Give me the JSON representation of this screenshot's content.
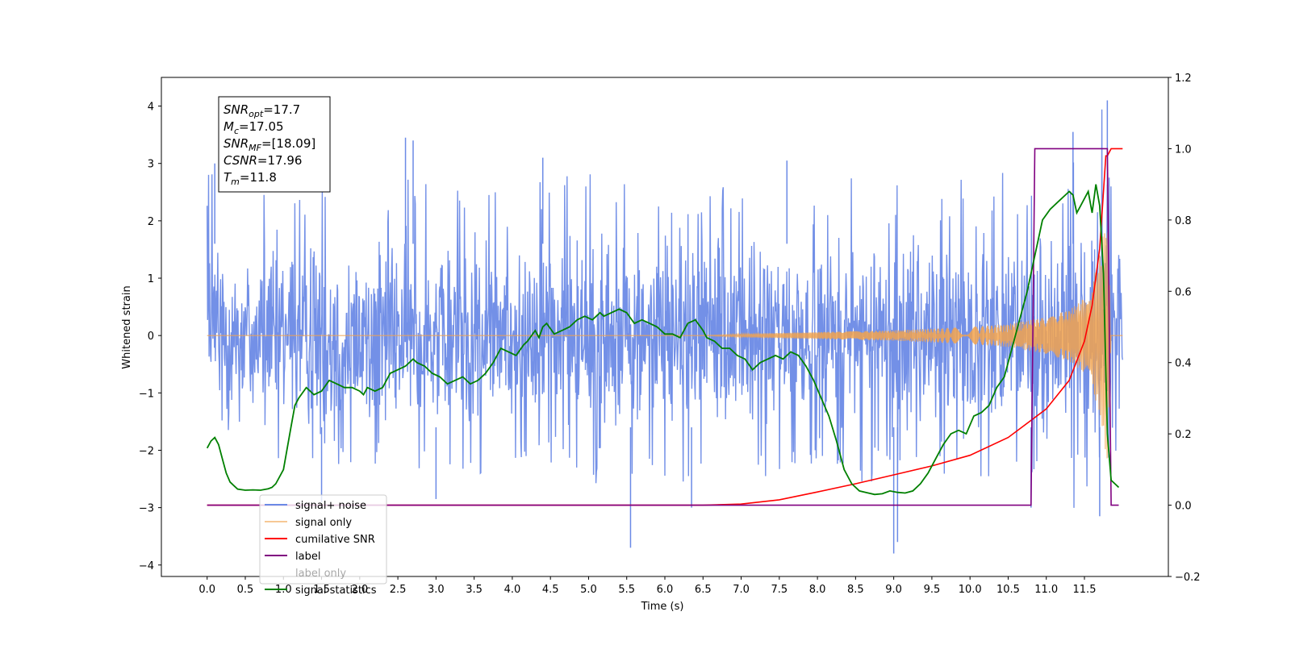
{
  "chart_data": {
    "type": "line",
    "title": "",
    "xlabel": "Time (s)",
    "ylabel": "Whitened strain",
    "xlim": [
      -0.6,
      12.6
    ],
    "ylim": [
      -4.2,
      4.5
    ],
    "y2lim": [
      -0.2,
      1.2
    ],
    "x_ticks": [
      0.0,
      0.5,
      1.0,
      1.5,
      2.0,
      2.5,
      3.0,
      3.5,
      4.0,
      4.5,
      5.0,
      5.5,
      6.0,
      6.5,
      7.0,
      7.5,
      8.0,
      8.5,
      9.0,
      9.5,
      10.0,
      10.5,
      11.0,
      11.5
    ],
    "x_tick_labels": [
      "0.0",
      "0.5",
      "1.0",
      "1.5",
      "2.0",
      "2.5",
      "3.0",
      "3.5",
      "4.0",
      "4.5",
      "5.0",
      "5.5",
      "6.0",
      "6.5",
      "7.0",
      "7.5",
      "8.0",
      "8.5",
      "9.0",
      "9.5",
      "10.0",
      "10.5",
      "11.0",
      "11.5"
    ],
    "y_ticks": [
      4,
      3,
      2,
      1,
      0,
      -1,
      -2,
      -3,
      -4
    ],
    "y_tick_labels": [
      "4",
      "3",
      "2",
      "1",
      "0",
      "−1",
      "−2",
      "−3",
      "−4"
    ],
    "y2_ticks": [
      1.2,
      1.0,
      0.8,
      0.6,
      0.4,
      0.2,
      0.0,
      -0.2
    ],
    "y2_tick_labels": [
      "1.2",
      "1.0",
      "0.8",
      "0.6",
      "0.4",
      "0.2",
      "0.0",
      "−0.2"
    ],
    "grid": false,
    "legend_position": "bottom-left",
    "series": [
      {
        "name": "signal+ noise",
        "axis": "left",
        "color": "#6b8ae6",
        "envelope": {
          "x": [
            0.0,
            1.0,
            2.0,
            3.0,
            4.0,
            5.0,
            6.0,
            7.0,
            8.0,
            9.0,
            10.0,
            11.0,
            11.5,
            12.0
          ],
          "upper": [
            3.0,
            2.6,
            2.8,
            2.7,
            2.7,
            2.9,
            2.7,
            2.7,
            2.8,
            2.6,
            2.7,
            3.0,
            3.2,
            2.6
          ],
          "lower": [
            -2.3,
            -2.4,
            -2.4,
            -2.5,
            -2.4,
            -2.6,
            -2.6,
            -2.5,
            -2.5,
            -2.6,
            -2.6,
            -2.7,
            -2.7,
            -2.2
          ]
        },
        "spikes": [
          {
            "x": 0.1,
            "y": 3.0
          },
          {
            "x": 2.6,
            "y": 3.45
          },
          {
            "x": 2.7,
            "y": 3.4
          },
          {
            "x": 4.4,
            "y": 3.1
          },
          {
            "x": 5.55,
            "y": -3.7
          },
          {
            "x": 6.35,
            "y": -3.0
          },
          {
            "x": 7.6,
            "y": 3.05
          },
          {
            "x": 9.0,
            "y": -3.8
          },
          {
            "x": 9.05,
            "y": -3.6
          },
          {
            "x": 10.8,
            "y": -3.0
          },
          {
            "x": 11.35,
            "y": 3.55
          },
          {
            "x": 11.8,
            "y": 4.1
          },
          {
            "x": 11.7,
            "y": -3.15
          },
          {
            "x": 3.0,
            "y": -2.85
          },
          {
            "x": 1.5,
            "y": -2.9
          }
        ]
      },
      {
        "name": "signal only",
        "axis": "left",
        "color": "#f2a34d",
        "x": [
          0.0,
          6.5,
          7.0,
          8.0,
          9.0,
          10.0,
          10.5,
          11.0,
          11.3,
          11.5,
          11.6,
          11.7,
          11.8,
          11.85,
          12.0
        ],
        "amplitude": [
          0.0,
          0.0,
          0.03,
          0.06,
          0.09,
          0.15,
          0.2,
          0.32,
          0.45,
          0.65,
          0.9,
          1.4,
          2.2,
          0.0,
          0.0
        ]
      },
      {
        "name": "cumilative SNR",
        "axis": "right",
        "color": "#ff0000",
        "x": [
          0.0,
          6.5,
          7.0,
          7.5,
          8.0,
          8.5,
          9.0,
          9.5,
          10.0,
          10.5,
          11.0,
          11.3,
          11.5,
          11.6,
          11.7,
          11.75,
          11.78,
          11.8,
          11.85,
          12.0
        ],
        "y": [
          0.0,
          0.0,
          0.003,
          0.015,
          0.037,
          0.06,
          0.085,
          0.11,
          0.14,
          0.19,
          0.27,
          0.35,
          0.46,
          0.56,
          0.72,
          0.88,
          0.98,
          0.98,
          1.0,
          1.0
        ]
      },
      {
        "name": "label",
        "axis": "right",
        "color": "#800080",
        "x": [
          0.0,
          10.8,
          10.85,
          11.8,
          11.85,
          11.95
        ],
        "y": [
          0.0,
          0.0,
          1.0,
          1.0,
          0.0,
          0.0
        ]
      },
      {
        "name": "label only",
        "axis": "right",
        "color": "#800080",
        "hidden": true,
        "x": [],
        "y": []
      },
      {
        "name": "signal statistics",
        "axis": "right",
        "color": "#008000",
        "x": [
          0.0,
          0.05,
          0.1,
          0.15,
          0.2,
          0.25,
          0.3,
          0.35,
          0.4,
          0.5,
          0.6,
          0.7,
          0.8,
          0.85,
          0.9,
          1.0,
          1.05,
          1.1,
          1.15,
          1.2,
          1.3,
          1.35,
          1.4,
          1.5,
          1.6,
          1.7,
          1.8,
          1.9,
          2.0,
          2.05,
          2.1,
          2.2,
          2.3,
          2.4,
          2.5,
          2.6,
          2.7,
          2.75,
          2.85,
          2.95,
          3.05,
          3.15,
          3.25,
          3.35,
          3.45,
          3.55,
          3.65,
          3.75,
          3.85,
          3.95,
          4.05,
          4.15,
          4.2,
          4.3,
          4.35,
          4.4,
          4.45,
          4.55,
          4.65,
          4.75,
          4.85,
          4.95,
          5.05,
          5.15,
          5.2,
          5.3,
          5.4,
          5.5,
          5.6,
          5.7,
          5.8,
          5.9,
          6.0,
          6.1,
          6.2,
          6.3,
          6.4,
          6.5,
          6.55,
          6.65,
          6.75,
          6.85,
          6.95,
          7.05,
          7.15,
          7.25,
          7.35,
          7.45,
          7.55,
          7.65,
          7.75,
          7.85,
          7.95,
          8.05,
          8.15,
          8.25,
          8.35,
          8.45,
          8.55,
          8.65,
          8.75,
          8.85,
          8.95,
          9.05,
          9.15,
          9.25,
          9.35,
          9.45,
          9.55,
          9.65,
          9.75,
          9.85,
          9.95,
          10.05,
          10.15,
          10.25,
          10.35,
          10.45,
          10.55,
          10.65,
          10.75,
          10.85,
          10.95,
          11.05,
          11.15,
          11.25,
          11.3,
          11.35,
          11.4,
          11.45,
          11.5,
          11.55,
          11.6,
          11.65,
          11.7,
          11.75,
          11.8,
          11.85,
          11.95
        ],
        "y": [
          0.16,
          0.18,
          0.19,
          0.17,
          0.13,
          0.09,
          0.065,
          0.055,
          0.045,
          0.042,
          0.043,
          0.042,
          0.046,
          0.05,
          0.06,
          0.1,
          0.16,
          0.22,
          0.28,
          0.3,
          0.33,
          0.32,
          0.31,
          0.32,
          0.35,
          0.34,
          0.33,
          0.33,
          0.32,
          0.31,
          0.33,
          0.32,
          0.33,
          0.37,
          0.38,
          0.39,
          0.41,
          0.4,
          0.39,
          0.37,
          0.36,
          0.34,
          0.35,
          0.36,
          0.34,
          0.35,
          0.37,
          0.4,
          0.44,
          0.43,
          0.42,
          0.45,
          0.46,
          0.49,
          0.47,
          0.5,
          0.51,
          0.48,
          0.49,
          0.5,
          0.52,
          0.53,
          0.52,
          0.54,
          0.53,
          0.54,
          0.55,
          0.54,
          0.51,
          0.52,
          0.51,
          0.5,
          0.48,
          0.48,
          0.47,
          0.51,
          0.52,
          0.49,
          0.47,
          0.46,
          0.44,
          0.44,
          0.42,
          0.41,
          0.38,
          0.4,
          0.41,
          0.42,
          0.41,
          0.43,
          0.42,
          0.39,
          0.35,
          0.3,
          0.25,
          0.18,
          0.1,
          0.06,
          0.04,
          0.035,
          0.03,
          0.032,
          0.04,
          0.036,
          0.034,
          0.04,
          0.06,
          0.09,
          0.13,
          0.17,
          0.2,
          0.21,
          0.2,
          0.25,
          0.26,
          0.28,
          0.33,
          0.36,
          0.44,
          0.52,
          0.6,
          0.7,
          0.8,
          0.83,
          0.85,
          0.87,
          0.88,
          0.87,
          0.82,
          0.84,
          0.86,
          0.88,
          0.82,
          0.9,
          0.84,
          0.65,
          0.2,
          0.07,
          0.05
        ]
      }
    ],
    "annotation_lines": [
      {
        "id": "snr-opt",
        "base": "SNR",
        "sub": "opt",
        "value": "=17.7"
      },
      {
        "id": "mc",
        "base": "M",
        "sub": "c",
        "value": "=17.05"
      },
      {
        "id": "snr-mf",
        "base": "SNR",
        "sub": "MF",
        "value": "=[18.09]"
      },
      {
        "id": "csnr",
        "base": "CSNR",
        "sub": "",
        "value": "=17.96"
      },
      {
        "id": "tm",
        "base": "T",
        "sub": "m",
        "value": "=11.8"
      }
    ]
  }
}
